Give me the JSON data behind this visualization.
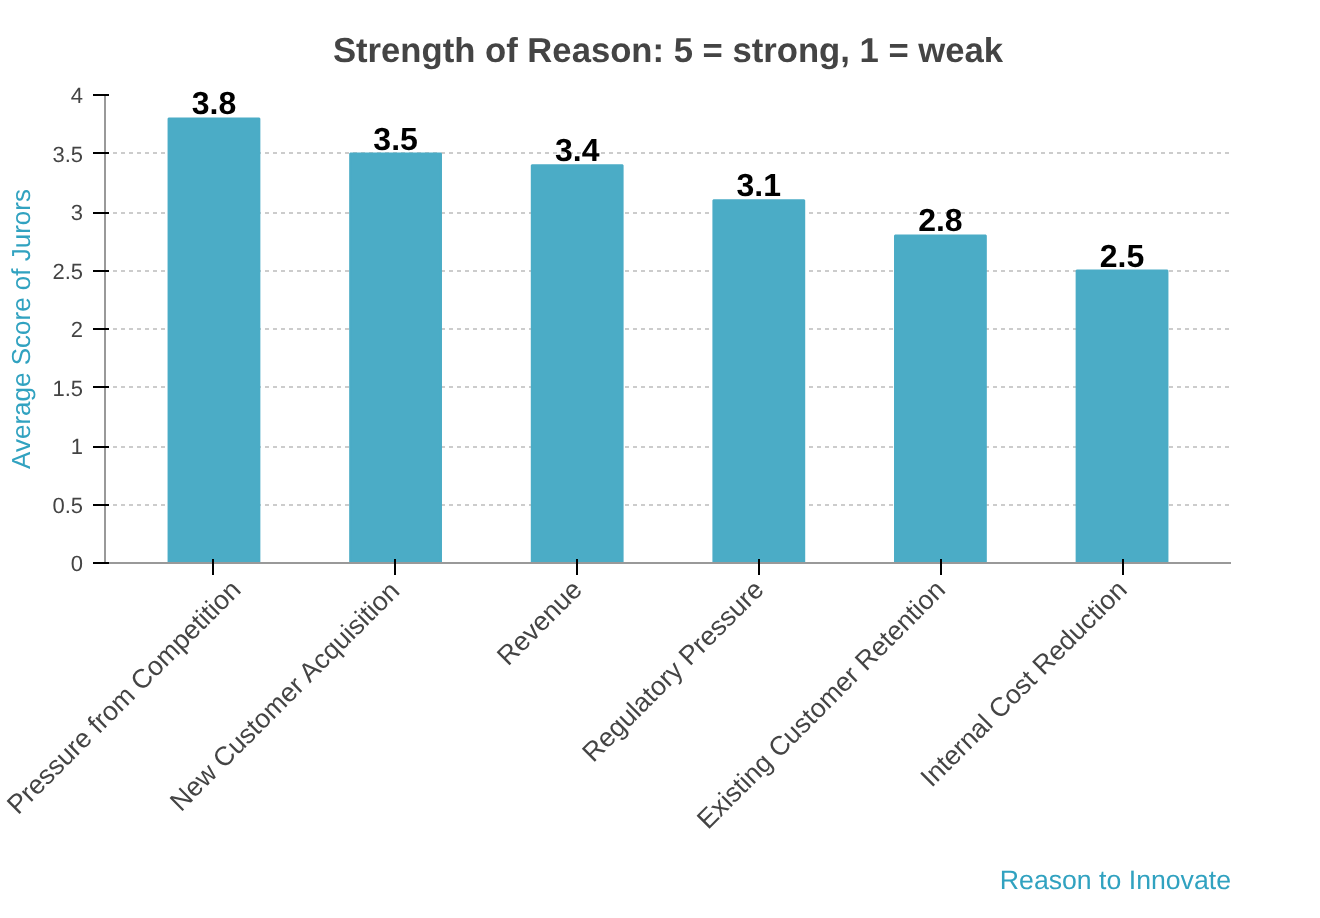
{
  "chart_data": {
    "type": "bar",
    "title": "Strength of Reason: 5 = strong, 1 = weak",
    "ylabel": "Average Score of Jurors",
    "xlabel": "Reason to Innovate",
    "categories": [
      "Pressure from Competition",
      "New Customer Acquisition",
      "Revenue",
      "Regulatory Pressure",
      "Existing Customer Retention",
      "Internal Cost Reduction"
    ],
    "values": [
      3.8,
      3.5,
      3.4,
      3.1,
      2.8,
      2.5
    ],
    "color": "#4bacc6",
    "data_labels": true,
    "ylim": [
      0,
      4
    ],
    "yticks": [
      0,
      0.5,
      1,
      1.5,
      2,
      2.5,
      3,
      3.5,
      4
    ],
    "grid": "y"
  }
}
